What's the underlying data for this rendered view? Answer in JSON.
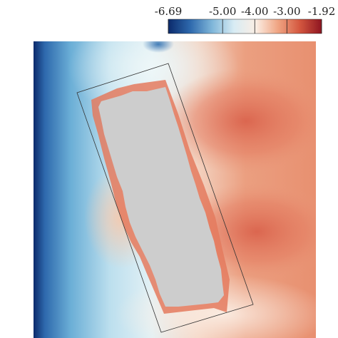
{
  "chart_data": {
    "type": "heatmap",
    "title": "",
    "xlabel": "",
    "ylabel": "",
    "colorbar": {
      "min": -6.69,
      "max": -1.92,
      "tick_values": [
        -6.69,
        -5.0,
        -4.0,
        -3.0,
        -1.92
      ],
      "tick_labels": [
        "-6.69",
        "-5.00",
        "-4.00",
        "-3.00",
        "-1.92"
      ],
      "colormap": "RdBu_r",
      "stops": [
        "#0b2a6b",
        "#2e69ad",
        "#7fb6d9",
        "#d8ecf4",
        "#fbeee4",
        "#f0a583",
        "#d4573f",
        "#8e1521"
      ],
      "placement": "top-right"
    },
    "masked_region_color": "#cdcdcd",
    "outline": "rotated rectangle",
    "grid": false
  }
}
